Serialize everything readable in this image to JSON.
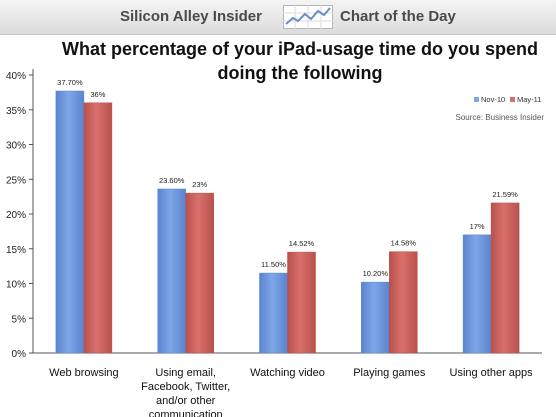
{
  "header": {
    "brand_name": "Silicon Alley Insider",
    "brand_sub": "Chart of the Day",
    "logo_icon": "trend-line-icon"
  },
  "chart_data": {
    "type": "bar",
    "title": [
      "What percentage of your iPad-usage time do you spend",
      "doing the following"
    ],
    "source": "Source: Business Insider",
    "categories": [
      [
        "Web browsing"
      ],
      [
        "Using email,",
        "Facebook, Twitter,",
        "and/or other",
        "communication"
      ],
      [
        "Watching video"
      ],
      [
        "Playing games"
      ],
      [
        "Using other apps"
      ]
    ],
    "series": [
      {
        "name": "Nov-10",
        "color": "#7fa6e8",
        "values": [
          37.7,
          23.6,
          11.5,
          10.2,
          17
        ],
        "labels": [
          "37.70%",
          "23.60%",
          "11.50%",
          "10.20%",
          "17%"
        ]
      },
      {
        "name": "May-11",
        "color": "#d9706b",
        "values": [
          36,
          23,
          14.52,
          14.58,
          21.59
        ],
        "labels": [
          "36%",
          "23%",
          "14.52%",
          "14.58%",
          "21.59%"
        ]
      }
    ],
    "ylim": [
      0,
      40
    ],
    "yticks": [
      0,
      5,
      10,
      15,
      20,
      25,
      30,
      35,
      40
    ],
    "ytick_labels": [
      "0%",
      "5%",
      "10%",
      "15%",
      "20%",
      "25%",
      "30%",
      "35%",
      "40%"
    ],
    "grid": false,
    "legend_position": "top-right"
  }
}
